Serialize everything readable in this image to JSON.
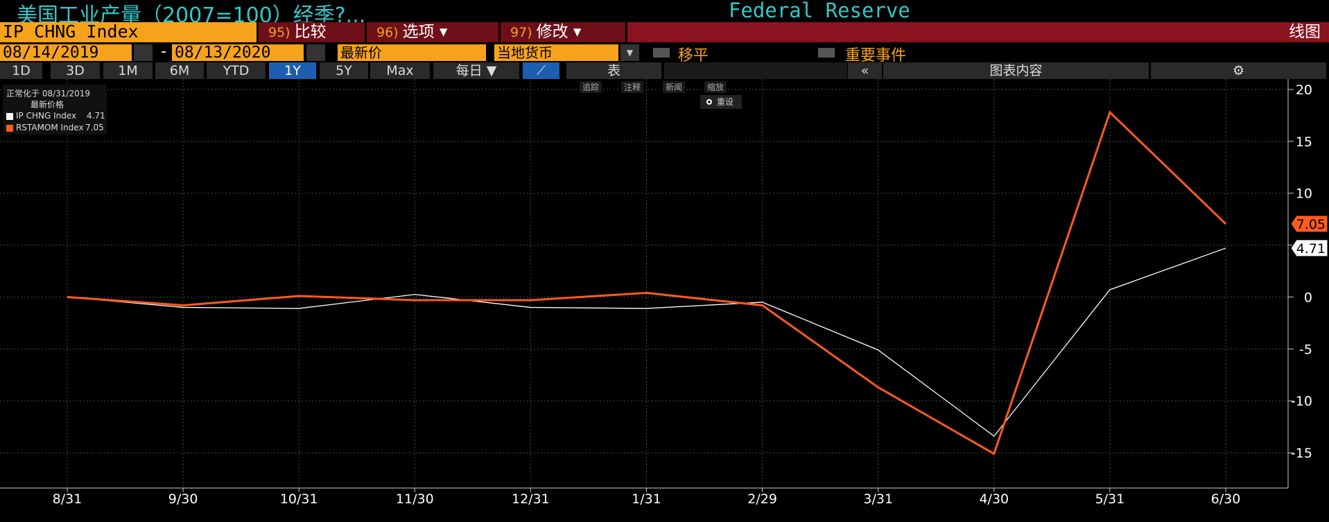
{
  "header": {
    "title": "美国工业产量（2007=100）经季?...",
    "source": "Federal Reserve"
  },
  "toolbar": {
    "ticker": "IP CHNG Index",
    "buttons": [
      {
        "num": "95)",
        "label": "比较"
      },
      {
        "num": "96)",
        "label": "选项"
      },
      {
        "num": "97)",
        "label": "修改"
      }
    ],
    "view": "线图"
  },
  "controls": {
    "start_date": "08/14/2019",
    "separator": "-",
    "end_date": "08/13/2020",
    "price": "最新价",
    "currency": "当地货币",
    "smoothing": "移平",
    "events": "重要事件"
  },
  "tabs": {
    "periods": [
      "1D",
      "3D",
      "1M",
      "6M",
      "YTD",
      "1Y",
      "5Y",
      "Max"
    ],
    "frequency": "每日",
    "table": "表",
    "contents": "图表内容"
  },
  "chart_tools": {
    "items": [
      "追踪",
      "注释",
      "新闻",
      "缩放"
    ],
    "reset": "重设"
  },
  "chart_data": {
    "type": "line",
    "legend_title": "正常化于 08/31/2019",
    "legend_subtitle": "最新价格",
    "categories": [
      "8/31",
      "9/30",
      "10/31",
      "11/30",
      "12/31",
      "1/31",
      "2/29",
      "3/31",
      "4/30",
      "5/31",
      "6/30"
    ],
    "series": [
      {
        "name": "IP CHNG Index",
        "color": "#ffffff",
        "values": [
          0,
          -1.0,
          -1.1,
          0.25,
          -1.0,
          -1.1,
          -0.5,
          -5.1,
          -13.4,
          0.7,
          4.71
        ]
      },
      {
        "name": "RSTAMOM Index",
        "color": "#ff5a1f",
        "values": [
          0,
          -0.8,
          0.1,
          -0.3,
          -0.3,
          0.4,
          -0.8,
          -8.7,
          -15.1,
          17.8,
          7.05
        ]
      }
    ],
    "ylim": [
      -18.4,
      21
    ],
    "yticks": [
      20,
      15,
      10,
      5,
      0,
      -5,
      -10,
      -15
    ],
    "grid": true
  }
}
